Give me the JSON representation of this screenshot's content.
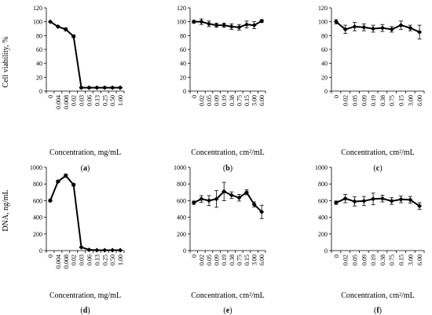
{
  "ylabels": {
    "top": "Cell viability, %",
    "bottom": "DNA, ng/mL"
  },
  "chart_data": [
    {
      "type": "line",
      "panel_label": "(a)",
      "xlabel": "Concentration, mg/mL",
      "ylabel": "Cell viability, %",
      "ylim": [
        0,
        120
      ],
      "yticks": [
        0,
        20,
        40,
        60,
        80,
        100,
        120
      ],
      "categories": [
        "0",
        "0.004",
        "0.008",
        "0.02",
        "0.03",
        "0.06",
        "0.13",
        "0.25",
        "0.50",
        "1.00"
      ],
      "values": [
        100,
        93,
        89,
        79,
        5,
        5,
        5,
        5,
        5,
        5
      ],
      "errors": [
        0,
        1,
        2,
        2,
        1,
        1,
        1,
        1,
        1,
        1
      ]
    },
    {
      "type": "line",
      "panel_label": "(b)",
      "xlabel": "Concentration, cm²/mL",
      "ylabel": "",
      "ylim": [
        0,
        120
      ],
      "yticks": [
        0,
        20,
        40,
        60,
        80,
        100,
        120
      ],
      "categories": [
        "0",
        "0.02",
        "0.05",
        "0.09",
        "0.19",
        "0.38",
        "0.75",
        "0.15",
        "3.00",
        "6.00"
      ],
      "values": [
        100,
        100,
        97,
        95,
        95,
        93,
        92,
        96,
        95,
        101
      ],
      "errors": [
        2,
        4,
        4,
        3,
        3,
        4,
        4,
        5,
        5,
        2
      ]
    },
    {
      "type": "line",
      "panel_label": "(c)",
      "xlabel": "Concentration, cm²/mL",
      "ylabel": "",
      "ylim": [
        0,
        120
      ],
      "yticks": [
        0,
        20,
        40,
        60,
        80,
        100,
        120
      ],
      "categories": [
        "0",
        "0.02",
        "0.05",
        "0.09",
        "0.19",
        "0.38",
        "0.75",
        "0.15",
        "3.00",
        "6.00"
      ],
      "values": [
        100,
        89,
        93,
        92,
        90,
        91,
        89,
        95,
        91,
        85
      ],
      "errors": [
        3,
        6,
        6,
        5,
        5,
        5,
        4,
        6,
        4,
        10
      ]
    },
    {
      "type": "line",
      "panel_label": "(d)",
      "xlabel": "Concentration, mg/mL",
      "ylabel": "DNA, ng/mL",
      "ylim": [
        0,
        1000
      ],
      "yticks": [
        0,
        200,
        400,
        600,
        800,
        1000
      ],
      "categories": [
        "0",
        "0.004",
        "0.008",
        "0.02",
        "0.03",
        "0.06",
        "0.13",
        "0.25",
        "0.50",
        "1.00"
      ],
      "values": [
        600,
        830,
        900,
        790,
        40,
        10,
        5,
        5,
        5,
        5
      ],
      "errors": [
        15,
        15,
        20,
        15,
        5,
        3,
        2,
        2,
        2,
        2
      ]
    },
    {
      "type": "line",
      "panel_label": "(e)",
      "xlabel": "Concentration, cm²/mL",
      "ylabel": "",
      "ylim": [
        0,
        1000
      ],
      "yticks": [
        0,
        200,
        400,
        600,
        800,
        1000
      ],
      "categories": [
        "0",
        "0.02",
        "0.05",
        "0.09",
        "0.19",
        "0.38",
        "0.75",
        "0.15",
        "3.00",
        "6.00"
      ],
      "values": [
        575,
        620,
        600,
        620,
        710,
        665,
        635,
        700,
        555,
        465
      ],
      "errors": [
        20,
        40,
        60,
        100,
        110,
        40,
        40,
        30,
        30,
        80
      ]
    },
    {
      "type": "line",
      "panel_label": "(f)",
      "xlabel": "Concentration, cm²/mL",
      "ylabel": "",
      "ylim": [
        0,
        1000
      ],
      "yticks": [
        0,
        200,
        400,
        600,
        800,
        1000
      ],
      "categories": [
        "0",
        "0.02",
        "0.05",
        "0.09",
        "0.19",
        "0.38",
        "0.75",
        "0.15",
        "3.00",
        "6.00"
      ],
      "values": [
        575,
        625,
        590,
        595,
        620,
        625,
        595,
        615,
        610,
        535
      ],
      "errors": [
        20,
        50,
        55,
        55,
        70,
        40,
        40,
        40,
        40,
        40
      ]
    }
  ]
}
